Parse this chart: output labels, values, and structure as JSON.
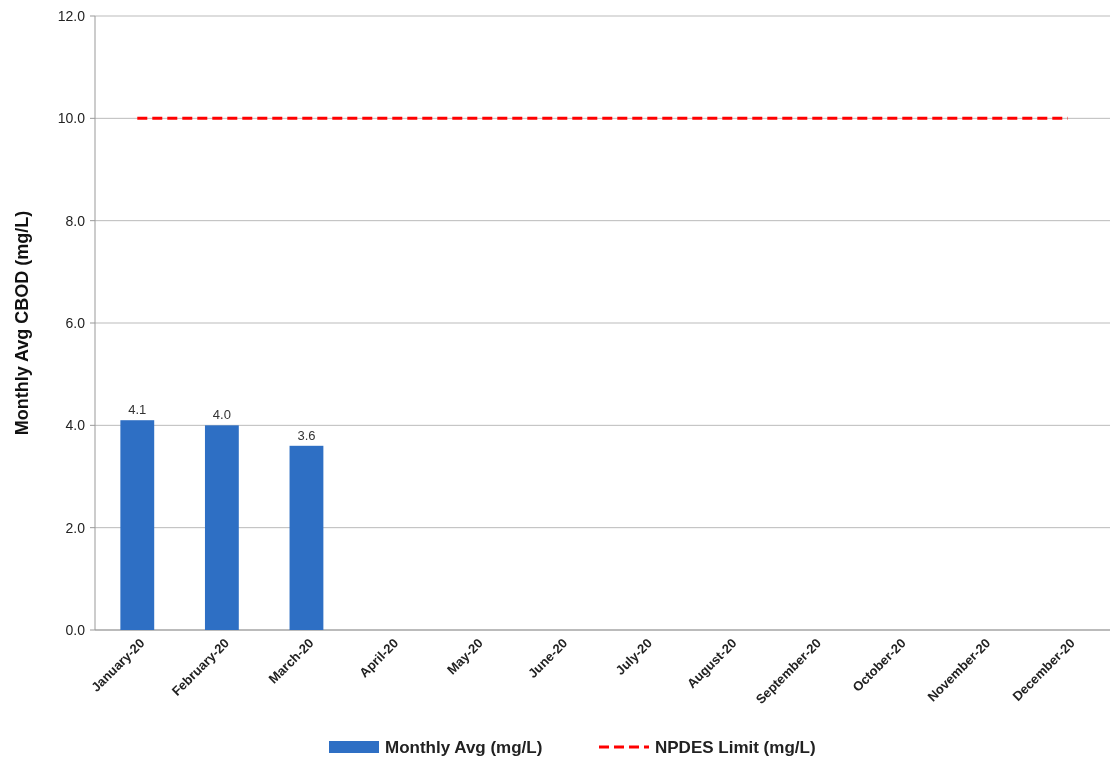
{
  "chart_data": {
    "type": "bar",
    "ylabel": "Monthly Avg CBOD (mg/L)",
    "categories": [
      "January-20",
      "February-20",
      "March-20",
      "April-20",
      "May-20",
      "June-20",
      "July-20",
      "August-20",
      "September-20",
      "October-20",
      "November-20",
      "December-20"
    ],
    "series": [
      {
        "name": "Monthly Avg (mg/L)",
        "color": "#2e6fc4",
        "values": [
          4.1,
          4.0,
          3.6,
          null,
          null,
          null,
          null,
          null,
          null,
          null,
          null,
          null
        ],
        "value_labels": [
          "4.1",
          "4.0",
          "3.6",
          null,
          null,
          null,
          null,
          null,
          null,
          null,
          null,
          null
        ]
      },
      {
        "name": "NPDES Limit (mg/L)",
        "type": "line",
        "color": "#ff0000",
        "line_style": "dashed",
        "values": [
          10,
          10,
          10,
          10,
          10,
          10,
          10,
          10,
          10,
          10,
          10,
          10
        ]
      }
    ],
    "ylim": [
      0,
      12
    ],
    "yticks": [
      {
        "value": 0,
        "label": "0.0"
      },
      {
        "value": 2,
        "label": "2.0"
      },
      {
        "value": 4,
        "label": "4.0"
      },
      {
        "value": 6,
        "label": "6.0"
      },
      {
        "value": 8,
        "label": "8.0"
      },
      {
        "value": 10,
        "label": "10.0"
      },
      {
        "value": 12,
        "label": "12.0"
      }
    ],
    "grid": "y",
    "legend": "bottom"
  }
}
